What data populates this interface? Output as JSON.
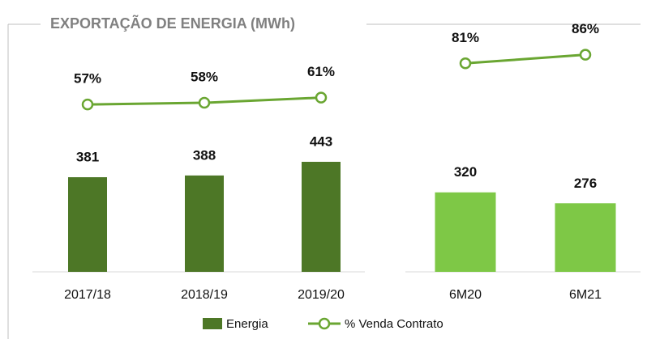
{
  "chart_data": [
    {
      "type": "bar",
      "title": "EXPORTAÇÃO DE ENERGIA (MWh)",
      "categories": [
        "2017/18",
        "2018/19",
        "2019/20"
      ],
      "series": [
        {
          "name": "Energia",
          "color": "#4d7726",
          "values": [
            381,
            388,
            443
          ]
        },
        {
          "name": "% Venda Contrato",
          "type": "line",
          "color": "#6aa632",
          "values": [
            57,
            58,
            61
          ],
          "value_labels": [
            "57%",
            "58%",
            "61%"
          ]
        }
      ]
    },
    {
      "type": "bar",
      "categories": [
        "6M20",
        "6M21"
      ],
      "series": [
        {
          "color": "#7ec846",
          "values": [
            320,
            276
          ]
        },
        {
          "type": "line",
          "color": "#6aa632",
          "values": [
            81,
            86
          ],
          "value_labels": [
            "81%",
            "86%"
          ]
        }
      ]
    }
  ]
}
